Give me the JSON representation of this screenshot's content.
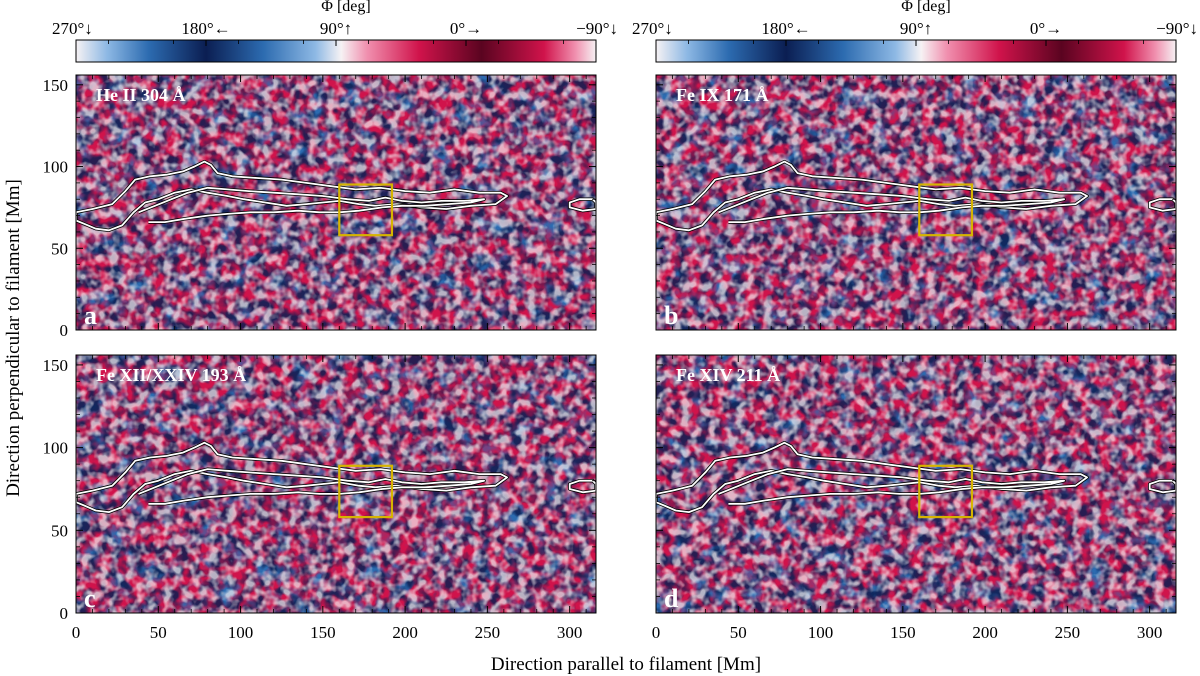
{
  "figure": {
    "xlabel": "Direction parallel to filament [Mm]",
    "ylabel": "Direction perpendicular to filament [Mm]",
    "colorbar": {
      "title": "Φ [deg]",
      "ticks": [
        "270°↓",
        "180°←",
        "90°↑",
        "0°→",
        "−90°↓"
      ]
    },
    "colors": {
      "blue_dark": "#0b1e52",
      "blue": "#2c6bb0",
      "blue_light": "#8db8e4",
      "white": "#f6f2f4",
      "red_light": "#f08fae",
      "red": "#d0134b",
      "red_dark": "#5a0420",
      "contour": "#ffffff",
      "box": "#d6b400"
    }
  },
  "chart_data": [
    {
      "type": "heatmap",
      "panel_letter": "a",
      "label": "He II 304 Å",
      "xlim": [
        0,
        316
      ],
      "ylim": [
        0,
        156
      ],
      "x_ticks": [
        "0",
        "50",
        "100",
        "150",
        "200",
        "250",
        "300"
      ],
      "y_ticks": [
        "0",
        "50",
        "100",
        "150"
      ],
      "colorbar_range_deg": [
        270,
        -90
      ],
      "highlight_box": {
        "x": [
          160,
          192
        ],
        "y": [
          58,
          89
        ]
      },
      "filament_contour_x_extent": [
        0,
        316
      ],
      "filament_contour_y_extent": [
        55,
        103
      ]
    },
    {
      "type": "heatmap",
      "panel_letter": "b",
      "label": "Fe IX 171 Å",
      "xlim": [
        0,
        316
      ],
      "ylim": [
        0,
        156
      ],
      "x_ticks": [
        "0",
        "50",
        "100",
        "150",
        "200",
        "250",
        "300"
      ],
      "y_ticks": [
        "0",
        "50",
        "100",
        "150"
      ],
      "colorbar_range_deg": [
        270,
        -90
      ],
      "highlight_box": {
        "x": [
          160,
          192
        ],
        "y": [
          58,
          89
        ]
      },
      "filament_contour_x_extent": [
        0,
        316
      ],
      "filament_contour_y_extent": [
        55,
        103
      ]
    },
    {
      "type": "heatmap",
      "panel_letter": "c",
      "label": "Fe XII/XXIV 193 Å",
      "xlim": [
        0,
        316
      ],
      "ylim": [
        0,
        156
      ],
      "x_ticks": [
        "0",
        "50",
        "100",
        "150",
        "200",
        "250",
        "300"
      ],
      "y_ticks": [
        "0",
        "50",
        "100",
        "150"
      ],
      "colorbar_range_deg": [
        270,
        -90
      ],
      "highlight_box": {
        "x": [
          160,
          192
        ],
        "y": [
          58,
          89
        ]
      },
      "filament_contour_x_extent": [
        0,
        316
      ],
      "filament_contour_y_extent": [
        55,
        103
      ]
    },
    {
      "type": "heatmap",
      "panel_letter": "d",
      "label": "Fe XIV 211 Å",
      "xlim": [
        0,
        316
      ],
      "ylim": [
        0,
        156
      ],
      "x_ticks": [
        "0",
        "50",
        "100",
        "150",
        "200",
        "250",
        "300"
      ],
      "y_ticks": [
        "0",
        "50",
        "100",
        "150"
      ],
      "colorbar_range_deg": [
        270,
        -90
      ],
      "highlight_box": {
        "x": [
          160,
          192
        ],
        "y": [
          58,
          89
        ]
      },
      "filament_contour_x_extent": [
        0,
        316
      ],
      "filament_contour_y_extent": [
        55,
        103
      ]
    }
  ]
}
